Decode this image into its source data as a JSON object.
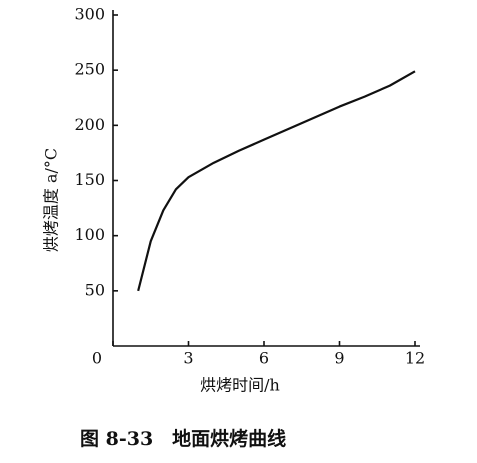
{
  "chart_data": {
    "type": "line",
    "caption": "图 8-33　地面烘烤曲线",
    "xlabel": "烘烤时间/h",
    "ylabel": "烘烤温度 a/°C",
    "x": [
      1,
      1.5,
      2,
      2.5,
      3,
      4,
      5,
      6,
      7,
      8,
      9,
      10,
      11,
      12
    ],
    "values": [
      50,
      95,
      123,
      142,
      153,
      166,
      177,
      187,
      197,
      207,
      217,
      226,
      236,
      249
    ],
    "color": "#111111",
    "xlim": [
      0,
      12
    ],
    "xticks": [
      0,
      3,
      6,
      9,
      12
    ],
    "ylim": [
      0,
      300
    ],
    "yticks": [
      50,
      100,
      150,
      200,
      250,
      300
    ]
  }
}
